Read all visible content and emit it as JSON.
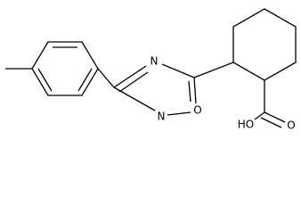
{
  "atoms": [
    {
      "label": "N"
    },
    {
      "label": "N"
    },
    {
      "label": "O"
    },
    {
      "label": "O"
    },
    {
      "label": "HO"
    }
  ]
}
